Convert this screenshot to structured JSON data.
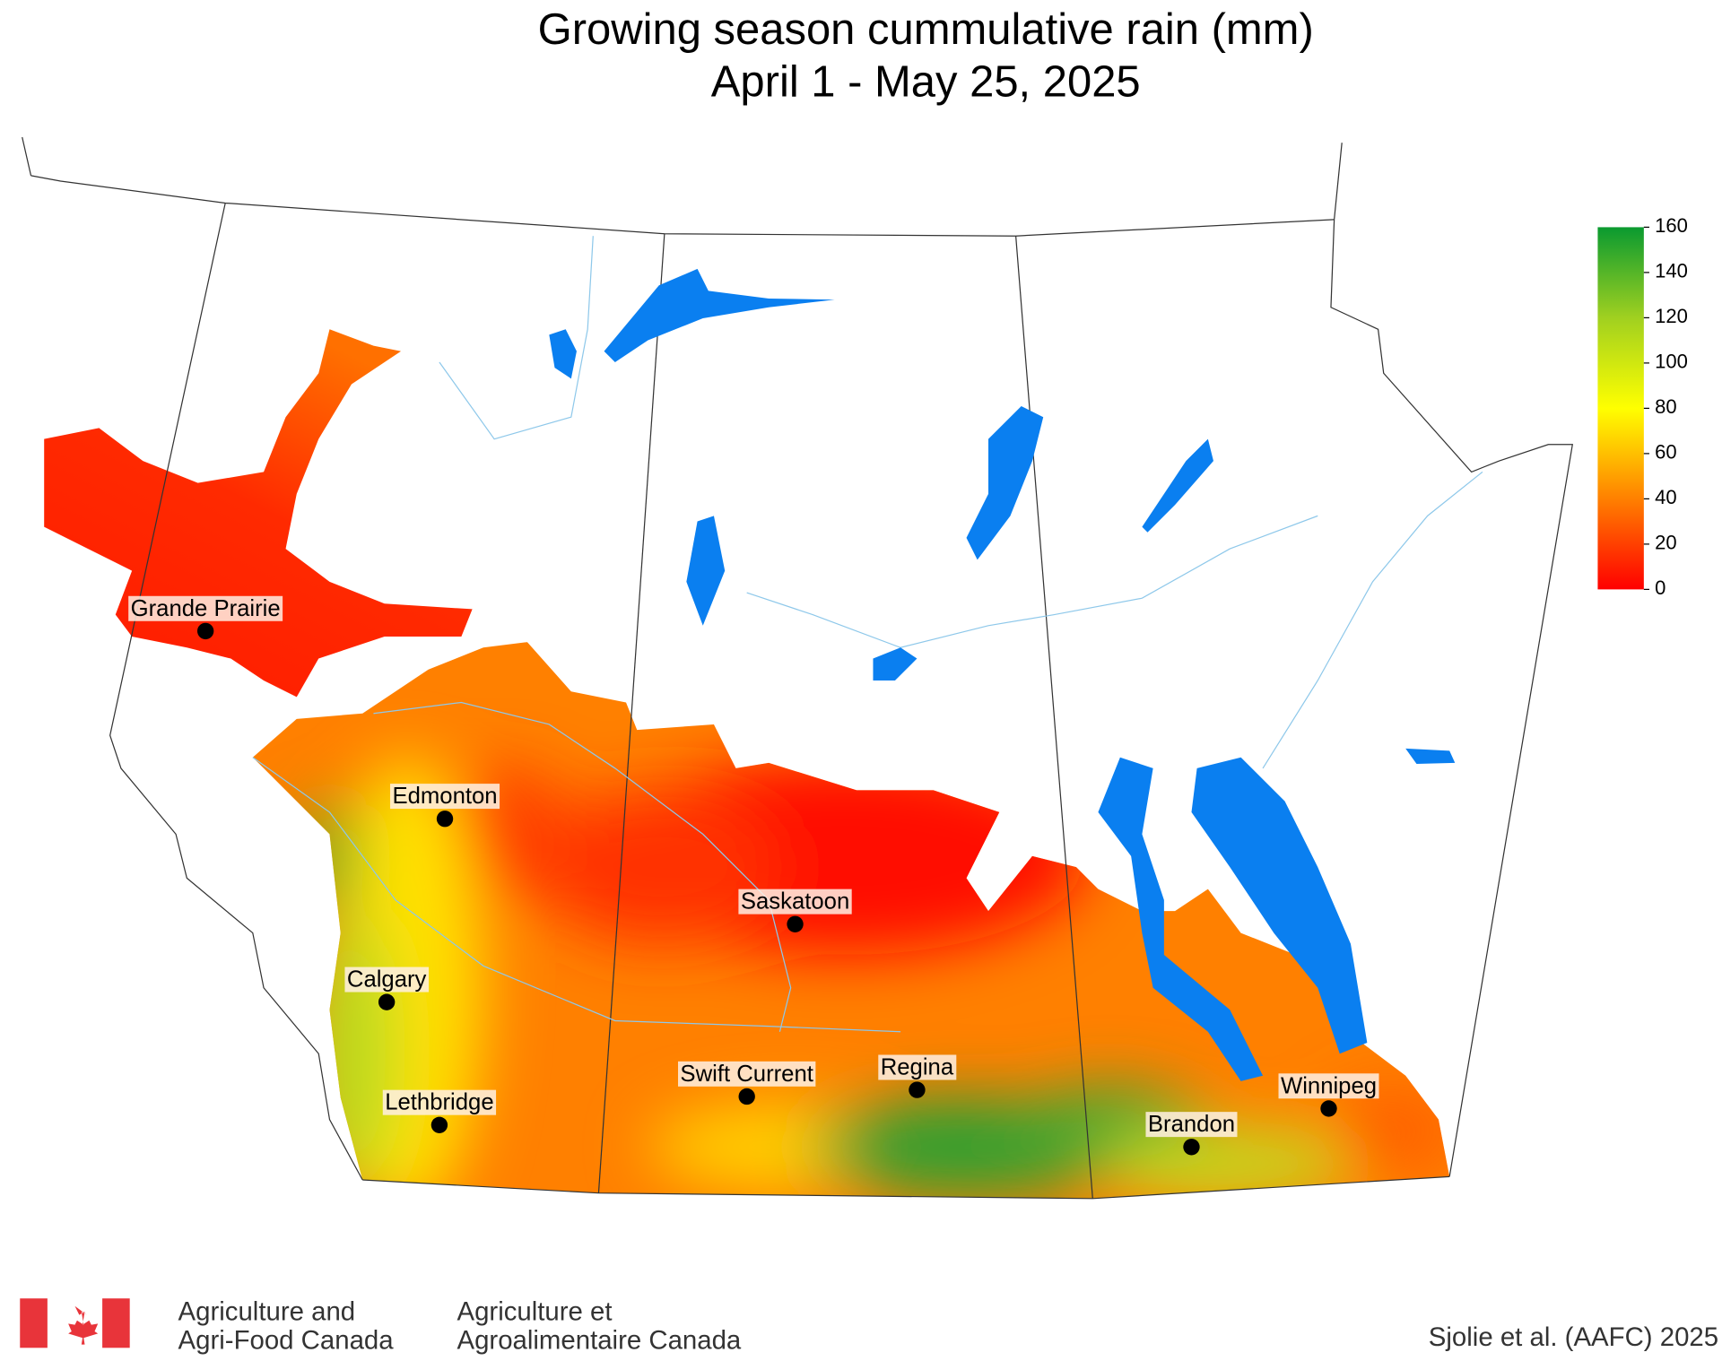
{
  "title": [
    "Growing season cummulative rain (mm)",
    "April 1 - May 25, 2025"
  ],
  "colorbar": {
    "lim": [
      0,
      160
    ],
    "ticks": [
      0,
      20,
      40,
      60,
      80,
      100,
      120,
      140,
      160
    ],
    "colors": [
      "#ff0000",
      "#ff8000",
      "#ffff00",
      "#a0d020",
      "#0a9a30"
    ]
  },
  "cities": [
    "Grande Prairie",
    "Edmonton",
    "Saskatoon",
    "Calgary",
    "Swift Current",
    "Regina",
    "Lethbridge",
    "Brandon",
    "Winnipeg"
  ],
  "footer": {
    "english": [
      "Agriculture and",
      "Agri-Food Canada"
    ],
    "french": [
      "Agriculture et",
      "Agroalimentaire Canada"
    ],
    "credit": "Sjolie et al. (AAFC) 2025"
  }
}
